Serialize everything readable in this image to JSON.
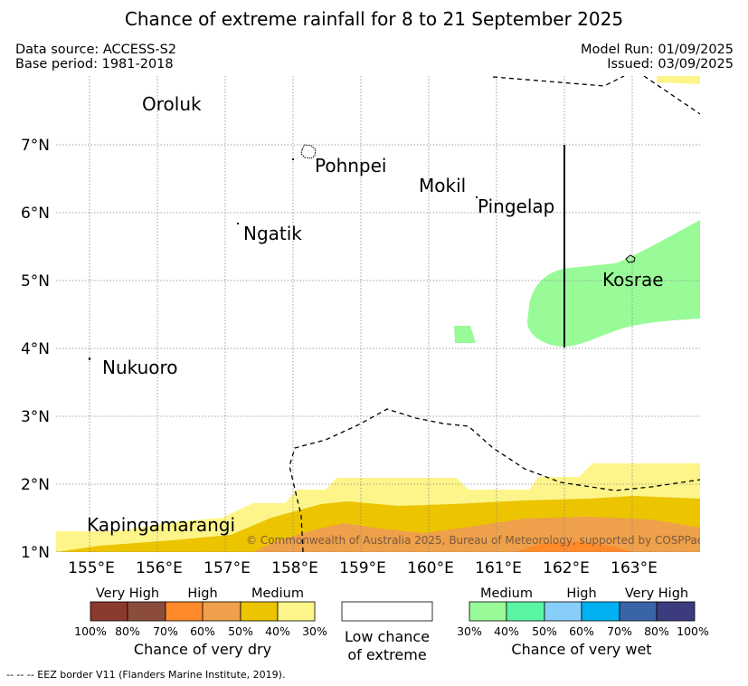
{
  "title": "Chance of extreme rainfall for 8 to 21 September 2025",
  "data_source": "Data source: ACCESS-S2",
  "base_period": "Base period: 1981-2018",
  "model_run": "Model Run: 01/09/2025",
  "issued": "Issued: 03/09/2025",
  "map": {
    "lon_ticks": [
      "155°E",
      "156°E",
      "157°E",
      "158°E",
      "159°E",
      "160°E",
      "161°E",
      "162°E",
      "163°E"
    ],
    "lat_ticks": [
      "7°N",
      "6°N",
      "5°N",
      "4°N",
      "3°N",
      "2°N",
      "1°N"
    ],
    "places": [
      "Oroluk",
      "Pohnpei",
      "Mokil",
      "Pingelap",
      "Ngatik",
      "Kosrae",
      "Nukuoro",
      "Kapingamarangi"
    ],
    "copyright": "© Commonwealth of Australia 2025, Bureau of Meteorology, supported by COSPPac"
  },
  "legend_dry": {
    "groups": [
      "Very High",
      "High",
      "Medium"
    ],
    "ticks": [
      "100%",
      "80%",
      "70%",
      "60%",
      "50%",
      "40%",
      "30%"
    ],
    "colors": [
      "#8b3a2e",
      "#8c4c3c",
      "#ff8a2a",
      "#eea04a",
      "#ecc400",
      "#fdf58a"
    ],
    "caption": "Chance of very dry"
  },
  "legend_low": {
    "line1": "Low chance",
    "line2": "of extreme"
  },
  "legend_wet": {
    "groups": [
      "Medium",
      "High",
      "Very High"
    ],
    "ticks": [
      "30%",
      "40%",
      "50%",
      "60%",
      "70%",
      "80%",
      "100%"
    ],
    "colors": [
      "#98fb98",
      "#5af6a6",
      "#87cefa",
      "#00b0f0",
      "#3a64a8",
      "#3b3b7e"
    ],
    "caption": "Chance of very wet"
  },
  "footer": "--  --  -- EEZ border V11 (Flanders Marine Institute, 2019)."
}
